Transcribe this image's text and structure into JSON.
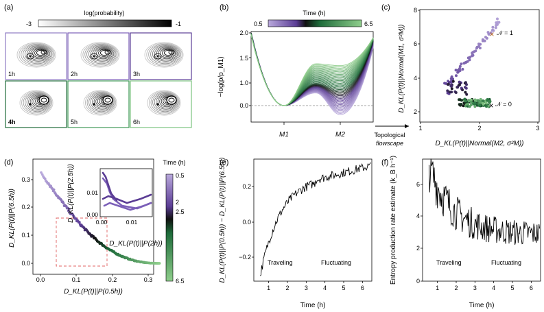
{
  "panels": {
    "a": {
      "label": "(a)",
      "colorbar_title": "log(probability)",
      "colorbar_min": "-3",
      "colorbar_max": "-1",
      "tiles": [
        {
          "label": "1h",
          "color": "#8e7cc3"
        },
        {
          "label": "2h",
          "color": "#7b5fb8"
        },
        {
          "label": "3h",
          "color": "#5b3d95"
        },
        {
          "label": "4h",
          "color": "#1e6b3a"
        },
        {
          "label": "5h",
          "color": "#3f9a57"
        },
        {
          "label": "6h",
          "color": "#7cc37f"
        }
      ]
    },
    "b": {
      "label": "(b)",
      "colorbar_title": "Time (h)",
      "colorbar_min": "0.5",
      "colorbar_max": "6.5",
      "ylabel": "−log(p/p_M1)",
      "xticks": [
        "M1",
        "M2"
      ],
      "yticks": [
        "0.0",
        "0.5",
        "1.0",
        "1.5",
        "2.0"
      ],
      "arrow_label_1": "Topological",
      "arrow_label_2": "flowscape"
    },
    "c": {
      "label": "(c)",
      "xlabel": "D_KL(P(t)||Normal(M2, σ²M))",
      "ylabel": "D_KL(P(t)||Normal(M1, σ²M))",
      "xticks": [
        "1",
        "2",
        "3"
      ],
      "yticks": [
        "2",
        "4",
        "6",
        "8"
      ],
      "marker_n1": "𝒩 = 1",
      "marker_n0": "𝒩 = 0"
    },
    "d": {
      "label": "(d)",
      "xlabel": "D_KL(P(t)||P(0.5h))",
      "ylabel": "D_KL(P(t)||P(6.5h))",
      "xticks": [
        "0.0",
        "0.1",
        "0.2",
        "0.3"
      ],
      "yticks": [
        "0.0",
        "0.1",
        "0.2",
        "0.3"
      ],
      "inset_xlabel": "D_KL(P(t)||P(2h))",
      "inset_ylabel": "D_KL(P(t)||P(2.5h))",
      "inset_xticks": [
        "0.00",
        "0.01"
      ],
      "inset_yticks": [
        "0.00",
        "0.01"
      ],
      "colorbar_title": "Time (h)",
      "colorbar_ticks": [
        "0.5",
        "2",
        "2.5",
        "6.5"
      ]
    },
    "e": {
      "label": "(e)",
      "xlabel": "Time (h)",
      "ylabel": "D_KL(P(t)||P(0.5h)) − D_KL(P(t)||P(6.5h))",
      "xticks": [
        "1",
        "2",
        "3",
        "4",
        "5",
        "6"
      ],
      "yticks": [
        "−0.2",
        "0.0",
        "0.2"
      ],
      "traveling": "Traveling",
      "fluctuating": "Fluctuating"
    },
    "f": {
      "label": "(f)",
      "xlabel": "Time (h)",
      "ylabel": "Entropy production rate estimate (k_B h⁻¹)",
      "xticks": [
        "1",
        "2",
        "3",
        "4",
        "5",
        "6"
      ],
      "yticks": [
        "0",
        "2",
        "4",
        "6"
      ],
      "traveling": "Traveling",
      "fluctuating": "Fluctuating"
    }
  },
  "colors": {
    "purple_light": "#b9a9dc",
    "purple": "#7b5fb8",
    "purple_dark": "#3d1f6e",
    "black": "#111111",
    "green_dark": "#1e6b3a",
    "green": "#3f9a57",
    "green_light": "#8fce8c",
    "orange": "#b5651d",
    "dashed_red": "#e06060"
  }
}
